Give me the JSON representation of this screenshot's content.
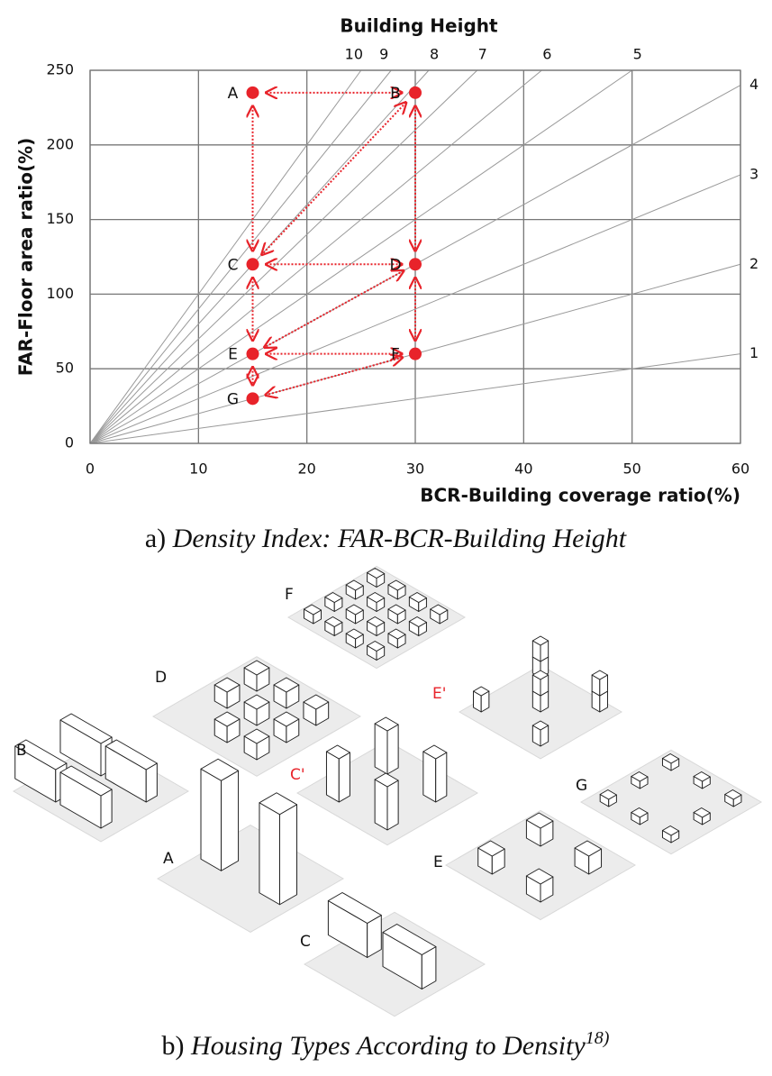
{
  "chart_data": {
    "type": "scatter",
    "title": "Building Height",
    "xlabel": "BCR-Building coverage ratio(%)",
    "ylabel": "FAR-Floor area ratio(%)",
    "labels": [
      "A",
      "B",
      "C",
      "D",
      "E",
      "F",
      "G"
    ],
    "x": [
      15,
      30,
      15,
      30,
      15,
      30,
      15
    ],
    "values": [
      235,
      235,
      120,
      120,
      60,
      60,
      30
    ],
    "color": "#e8232a",
    "height_lines": [
      1,
      2,
      3,
      4,
      5,
      6,
      7,
      8,
      9,
      10
    ],
    "xlim": [
      0,
      60
    ],
    "xticks": [
      0,
      10,
      20,
      30,
      40,
      50,
      60
    ],
    "ylim": [
      0,
      250
    ],
    "yticks": [
      0,
      50,
      100,
      150,
      200,
      250
    ],
    "grid": true
  },
  "captions": {
    "a_prefix": "a)",
    "a_text": "Density Index: FAR-BCR-Building Height",
    "b_prefix": "b)",
    "b_text": "Housing Types According to Density",
    "b_ref": "18)"
  },
  "housing_types": {
    "F": "F",
    "D": "D",
    "E_prime": "E'",
    "B": "B",
    "C_prime": "C'",
    "G": "G",
    "A": "A",
    "E": "E",
    "C": "C"
  }
}
